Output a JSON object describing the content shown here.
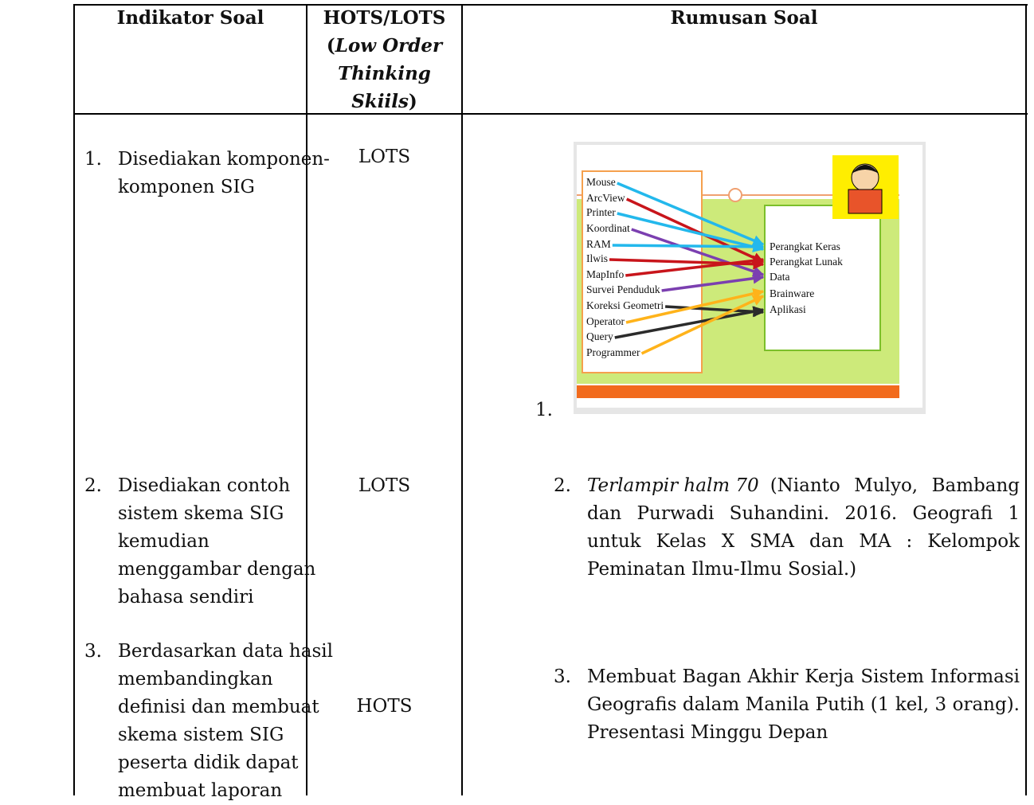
{
  "header": {
    "col1": "Indikator Soal",
    "col2": {
      "main": "HOTS/LOTS",
      "open": "(",
      "italic": [
        "Low Order",
        "Thinking",
        "Skiils"
      ],
      "close": ")"
    },
    "col3": "Rumusan Soal"
  },
  "rows": [
    {
      "number": "1.",
      "indicator": [
        "Disediakan komponen-",
        "komponen SIG"
      ],
      "level": "LOTS",
      "rumusan_number": "1.",
      "diagram": {
        "left": [
          "Mouse",
          "ArcView",
          "Printer",
          "Koordinat",
          "RAM",
          "Ilwis",
          "MapInfo",
          "Survei Penduduk",
          "Koreksi Geometri",
          "Operator",
          "Query",
          "Programmer"
        ],
        "right": [
          "Perangkat Keras",
          "Perangkat Lunak",
          "Data",
          "Brainware",
          "Aplikasi"
        ]
      }
    },
    {
      "number": "2.",
      "indicator": [
        "Disediakan contoh",
        "sistem skema SIG",
        "kemudian",
        "menggambar dengan",
        "bahasa sendiri"
      ],
      "level": "LOTS",
      "rumusan_number": "2.",
      "rumusan_italic": "Terlampir halm 70",
      "rumusan": [
        "(Nianto Mulyo, Bambang",
        "dan Purwadi Suhandini. 2016. Geografi 1",
        "untuk Kelas X SMA dan MA : Kelompok",
        "Peminatan Ilmu-Ilmu Sosial.)"
      ]
    },
    {
      "number": "3.",
      "indicator": [
        "Berdasarkan data hasil",
        "membandingkan",
        "definisi dan membuat",
        "skema sistem SIG",
        "peserta didik dapat",
        "membuat laporan"
      ],
      "level": "HOTS",
      "rumusan_number": "3.",
      "rumusan": [
        "Membuat Bagan Akhir Kerja Sistem Informasi",
        "Geografis dalam Manila Putih (1 kel, 3 orang).",
        "Presentasi Minggu Depan"
      ]
    }
  ]
}
